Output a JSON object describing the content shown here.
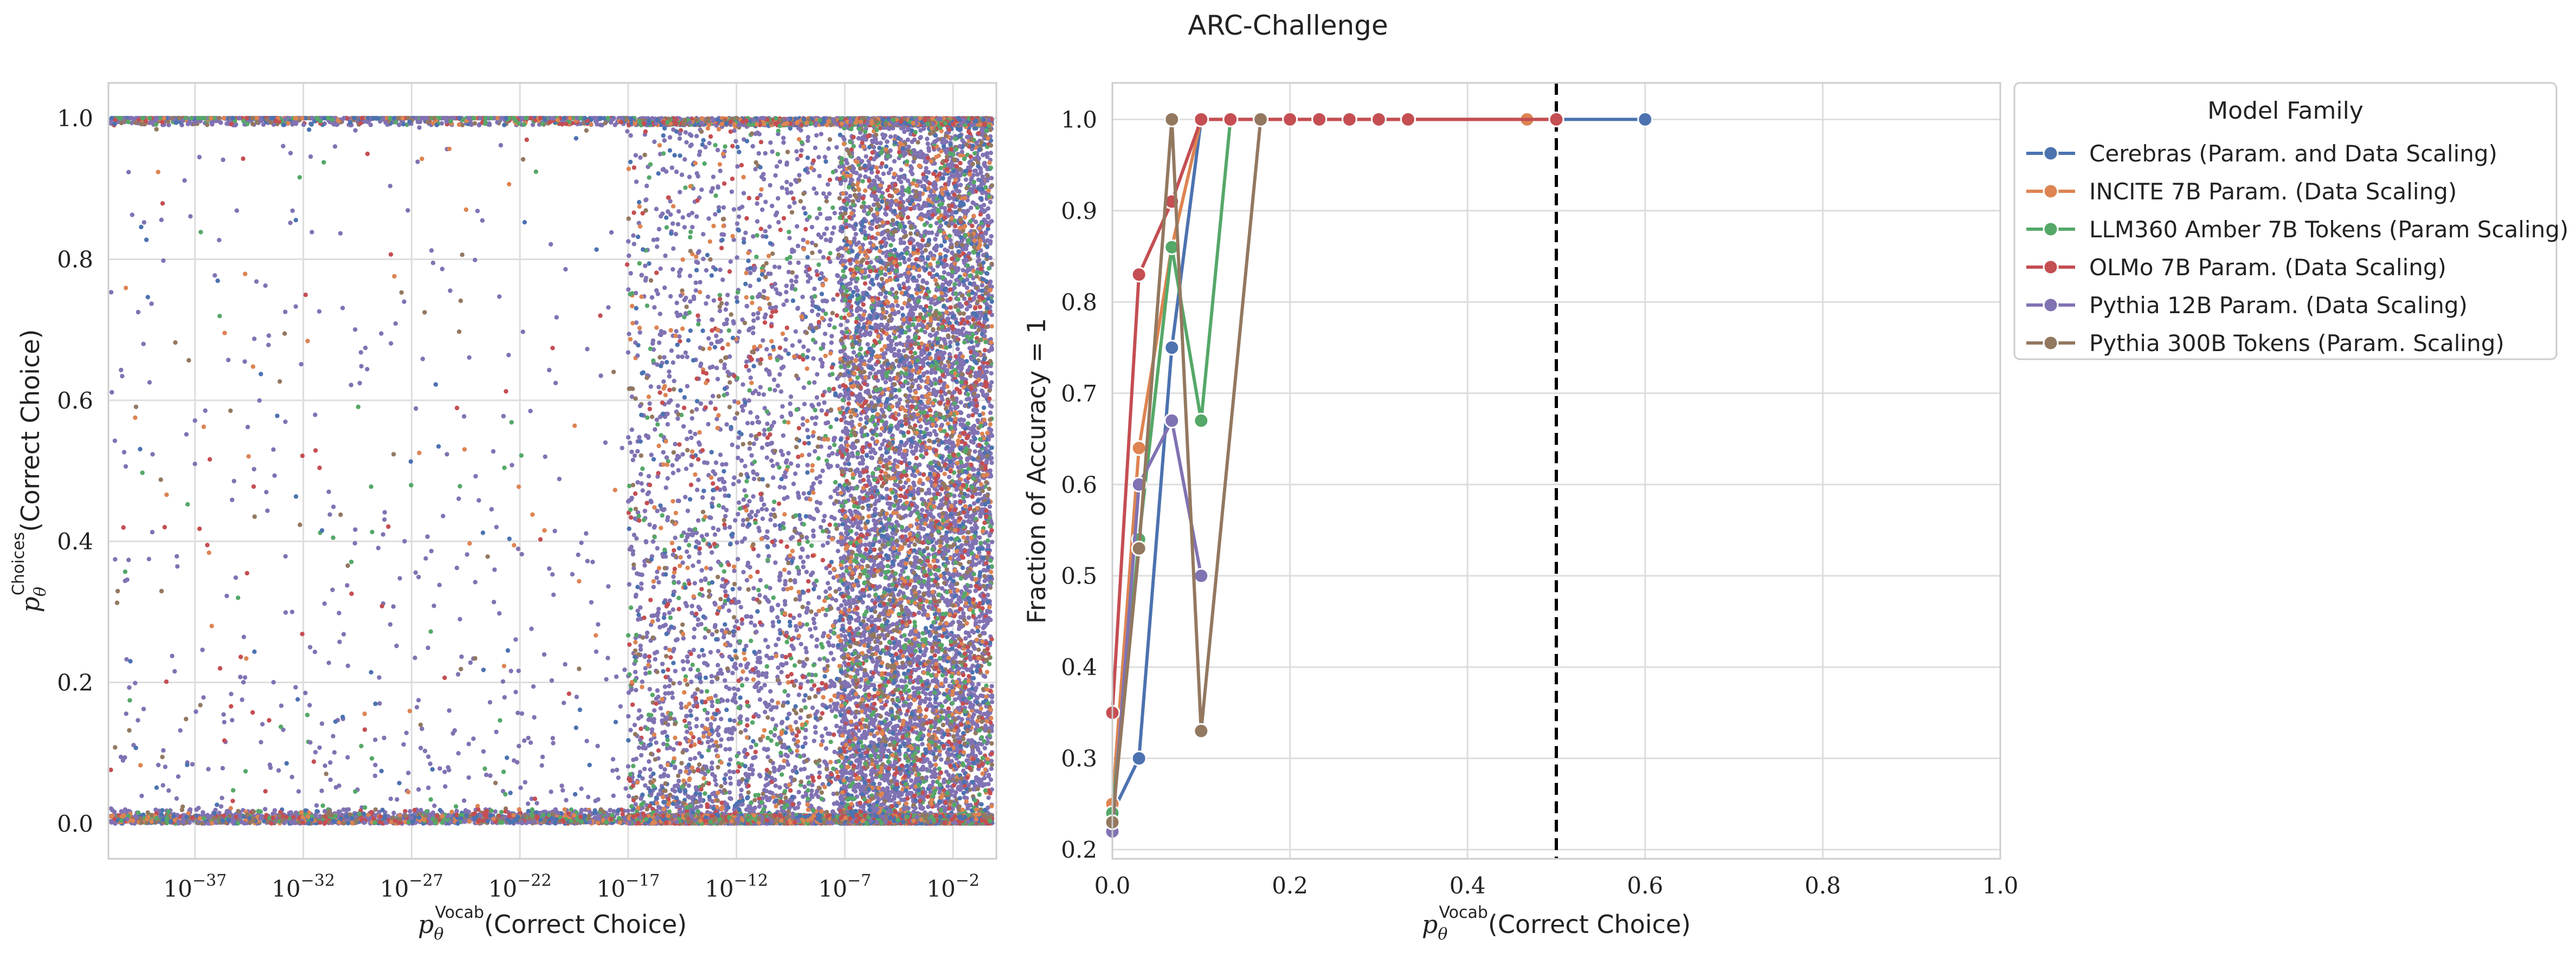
{
  "figure_title": "ARC-Challenge",
  "chart_data": [
    {
      "type": "scatter",
      "xlabel_main": "p",
      "xlabel_sub": "θ",
      "xlabel_sup": "Vocab",
      "xlabel_rest": "(Correct Choice)",
      "ylabel_main": "p",
      "ylabel_sub": "θ",
      "ylabel_sup": "Choices",
      "ylabel_rest": "(Correct Choice)",
      "x_scale": "log",
      "xlim": [
        "1e-41",
        "1e0"
      ],
      "ylim": [
        -0.05,
        1.05
      ],
      "xticks": [
        {
          "exp": -37,
          "base": "10",
          "sup": "−37"
        },
        {
          "exp": -32,
          "base": "10",
          "sup": "−32"
        },
        {
          "exp": -27,
          "base": "10",
          "sup": "−27"
        },
        {
          "exp": -22,
          "base": "10",
          "sup": "−22"
        },
        {
          "exp": -17,
          "base": "10",
          "sup": "−17"
        },
        {
          "exp": -12,
          "base": "10",
          "sup": "−12"
        },
        {
          "exp": -7,
          "base": "10",
          "sup": "−7"
        },
        {
          "exp": -2,
          "base": "10",
          "sup": "−2"
        }
      ],
      "yticks": [
        {
          "v": 0.0,
          "label": "0.0"
        },
        {
          "v": 0.2,
          "label": "0.2"
        },
        {
          "v": 0.4,
          "label": "0.4"
        },
        {
          "v": 0.6,
          "label": "0.6"
        },
        {
          "v": 0.8,
          "label": "0.8"
        },
        {
          "v": 1.0,
          "label": "1.0"
        }
      ],
      "grid": true,
      "series_colors": [
        "#4c72b0",
        "#dd8452",
        "#55a868",
        "#c44e52",
        "#8172b3",
        "#937860"
      ],
      "point_distribution": "dense cloud concentrated at high x and near y=0 and y=1, sparse at low x"
    },
    {
      "type": "line",
      "xlabel_main": "p",
      "xlabel_sub": "θ",
      "xlabel_sup": "Vocab",
      "xlabel_rest": "(Correct Choice)",
      "ylabel": "Fraction of Accuracy = 1",
      "xlim": [
        0.0,
        1.0
      ],
      "ylim": [
        0.19,
        1.04
      ],
      "xticks": [
        {
          "v": 0.0,
          "label": "0.0"
        },
        {
          "v": 0.2,
          "label": "0.2"
        },
        {
          "v": 0.4,
          "label": "0.4"
        },
        {
          "v": 0.6,
          "label": "0.6"
        },
        {
          "v": 0.8,
          "label": "0.8"
        },
        {
          "v": 1.0,
          "label": "1.0"
        }
      ],
      "yticks": [
        {
          "v": 0.2,
          "label": "0.2"
        },
        {
          "v": 0.3,
          "label": "0.3"
        },
        {
          "v": 0.4,
          "label": "0.4"
        },
        {
          "v": 0.5,
          "label": "0.5"
        },
        {
          "v": 0.6,
          "label": "0.6"
        },
        {
          "v": 0.7,
          "label": "0.7"
        },
        {
          "v": 0.8,
          "label": "0.8"
        },
        {
          "v": 0.9,
          "label": "0.9"
        },
        {
          "v": 1.0,
          "label": "1.0"
        }
      ],
      "vline": {
        "x": 0.5,
        "style": "dashed",
        "color": "#000000"
      },
      "grid": true,
      "legend": {
        "title": "Model Family",
        "placement": "outside-right"
      },
      "series": [
        {
          "name": "Cerebras (Param. and Data Scaling)",
          "color": "#4c72b0",
          "x": [
            0.0,
            0.03,
            0.067,
            0.1,
            0.2,
            0.3,
            0.5,
            0.6
          ],
          "y": [
            0.24,
            0.3,
            0.75,
            1.0,
            1.0,
            1.0,
            1.0,
            1.0
          ]
        },
        {
          "name": "INCITE 7B Param. (Data Scaling)",
          "color": "#dd8452",
          "x": [
            0.0,
            0.03,
            0.067,
            0.1,
            0.133,
            0.167,
            0.2,
            0.233,
            0.267,
            0.3,
            0.333,
            0.467,
            0.5
          ],
          "y": [
            0.25,
            0.64,
            0.86,
            1.0,
            1.0,
            1.0,
            1.0,
            1.0,
            1.0,
            1.0,
            1.0,
            1.0,
            1.0
          ]
        },
        {
          "name": "LLM360 Amber 7B Tokens (Param Scaling)",
          "color": "#55a868",
          "x": [
            0.0,
            0.03,
            0.067,
            0.1,
            0.133
          ],
          "y": [
            0.24,
            0.54,
            0.86,
            0.67,
            1.0
          ]
        },
        {
          "name": "OLMo 7B Param. (Data Scaling)",
          "color": "#c44e52",
          "x": [
            0.0,
            0.03,
            0.067,
            0.1,
            0.133,
            0.167,
            0.2,
            0.233,
            0.267,
            0.3,
            0.333,
            0.5
          ],
          "y": [
            0.35,
            0.83,
            0.91,
            1.0,
            1.0,
            1.0,
            1.0,
            1.0,
            1.0,
            1.0,
            1.0,
            1.0
          ]
        },
        {
          "name": "Pythia 12B Param. (Data Scaling)",
          "color": "#8172b3",
          "x": [
            0.0,
            0.03,
            0.067,
            0.1
          ],
          "y": [
            0.22,
            0.6,
            0.67,
            0.5
          ]
        },
        {
          "name": "Pythia 300B Tokens (Param. Scaling)",
          "color": "#937860",
          "x": [
            0.0,
            0.03,
            0.067,
            0.1,
            0.167
          ],
          "y": [
            0.23,
            0.53,
            1.0,
            0.33,
            1.0
          ]
        }
      ]
    }
  ]
}
